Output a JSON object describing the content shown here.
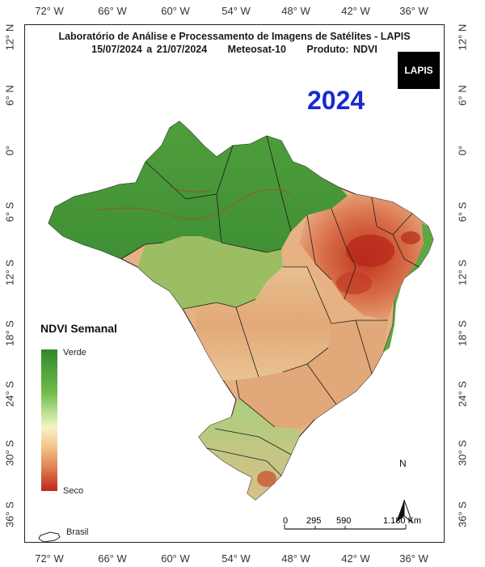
{
  "title_line1": "Laboratório de Análise e Processamento de Imagens de Satélites - LAPIS",
  "period": "15/07/2024  a  21/07/2024",
  "satellite": "Meteosat-10",
  "product": "Produto: NDVI",
  "year": "2024",
  "logo_text": "LAPIS",
  "longitude_ticks": [
    "72° W",
    "66° W",
    "60° W",
    "54° W",
    "48° W",
    "42° W",
    "36° W"
  ],
  "latitude_ticks": [
    "12° N",
    "6° N",
    "0°",
    "6° S",
    "12° S",
    "18° S",
    "24° S",
    "30° S",
    "36° S"
  ],
  "legend": {
    "title": "NDVI Semanal",
    "high_label": "Verde",
    "low_label": "Seco",
    "colors": [
      "#2f8a2a",
      "#6fbb4a",
      "#d5edae",
      "#f6f2c8",
      "#f2c790",
      "#e08a55",
      "#c0261a"
    ]
  },
  "north_label": "N",
  "scale_bar": {
    "labels": [
      "0",
      "295",
      "590",
      "1.180 Km"
    ]
  },
  "boundary_legend_label": "Brasil"
}
